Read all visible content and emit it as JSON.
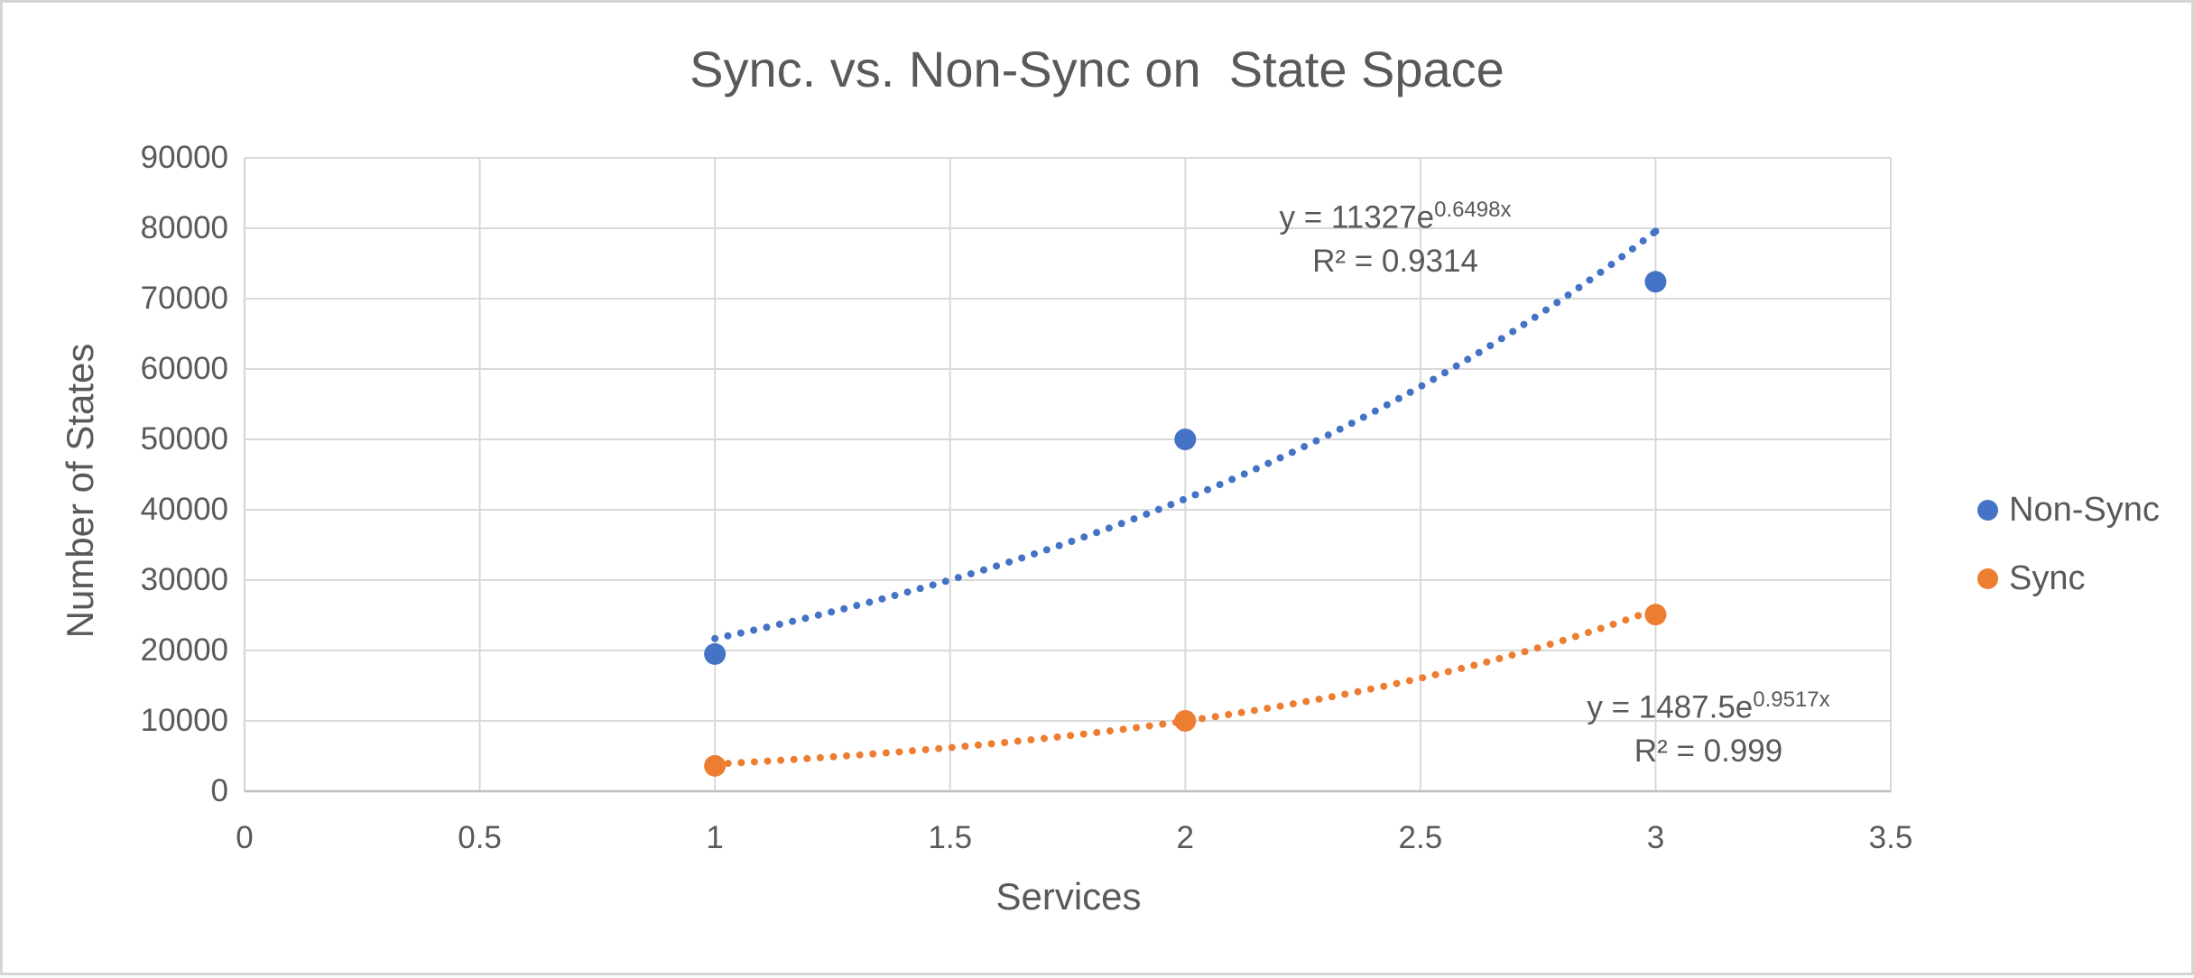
{
  "window": {
    "background": "#ffffff",
    "frame_border_color": "#d5d5d5"
  },
  "colors": {
    "text": "#595959",
    "gridline": "#d9d9d9",
    "axis_line": "#bfbfbf",
    "non_sync_series": "#4472c4",
    "sync_series": "#ed7d31"
  },
  "chart_data": {
    "type": "scatter",
    "title": "Sync. vs. Non-Sync on  State Space",
    "xlabel": "Services",
    "ylabel": "Number of States",
    "xlim": [
      0,
      3.5
    ],
    "ylim": [
      0,
      90000
    ],
    "xticks": [
      0,
      0.5,
      1,
      1.5,
      2,
      2.5,
      3,
      3.5
    ],
    "yticks": [
      0,
      10000,
      20000,
      30000,
      40000,
      50000,
      60000,
      70000,
      80000,
      90000
    ],
    "grid": true,
    "grid_color": "#d9d9d9",
    "axis_color": "#bfbfbf",
    "legend_position": "right",
    "series": [
      {
        "name": "Non-Sync",
        "color": "#4472c4",
        "marker": "circle",
        "x": [
          1,
          2,
          3
        ],
        "y": [
          19500,
          50000,
          72400
        ],
        "trendline": {
          "type": "exponential",
          "style": "dotted",
          "a": 11327,
          "b": 0.6498,
          "range": [
            1,
            3
          ],
          "equation": {
            "prefix": "y = 11327e",
            "exponent": "0.6498x"
          },
          "r2": "R² = 0.9314"
        }
      },
      {
        "name": "Sync",
        "color": "#ed7d31",
        "marker": "circle",
        "x": [
          1,
          2,
          3
        ],
        "y": [
          3600,
          10000,
          25100
        ],
        "trendline": {
          "type": "exponential",
          "style": "dotted",
          "a": 1487.5,
          "b": 0.9517,
          "range": [
            1,
            3
          ],
          "equation": {
            "prefix": "y = 1487.5e",
            "exponent": "0.9517x"
          },
          "r2": "R² = 0.999"
        }
      }
    ]
  }
}
